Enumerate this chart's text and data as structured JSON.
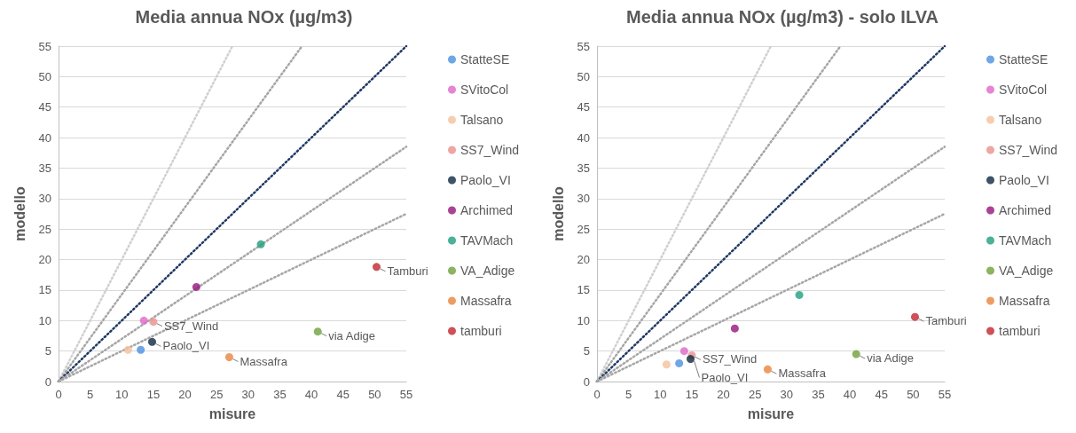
{
  "chart_data": [
    {
      "type": "scatter",
      "title": "Media annua NOx (µg/m3)",
      "xlabel": "misure",
      "ylabel": "modello",
      "xlim": [
        0,
        55
      ],
      "xticks": [
        0,
        5,
        10,
        15,
        20,
        25,
        30,
        35,
        40,
        45,
        50,
        55
      ],
      "ylim": [
        0,
        55
      ],
      "yticks": [
        0,
        5,
        10,
        15,
        20,
        25,
        30,
        35,
        40,
        45,
        50,
        55
      ],
      "grid": "y",
      "legend": "right",
      "marker": "circle",
      "series": [
        {
          "type": "line",
          "color": "#d0d0d0",
          "line_style": "dotted",
          "marker": "none",
          "x": [
            0,
            27.5
          ],
          "values": [
            0,
            55
          ]
        },
        {
          "type": "line",
          "color": "#a6a6a6",
          "line_style": "dotted",
          "marker": "none",
          "x": [
            0,
            38.5
          ],
          "values": [
            0,
            55
          ]
        },
        {
          "type": "line",
          "color": "#1f3864",
          "line_style": "dotted",
          "marker": "none",
          "x": [
            0,
            55
          ],
          "values": [
            0,
            55
          ]
        },
        {
          "type": "line",
          "color": "#a6a6a6",
          "line_style": "dotted",
          "marker": "none",
          "x": [
            0,
            55
          ],
          "values": [
            0,
            38.5
          ]
        },
        {
          "type": "line",
          "color": "#a6a6a6",
          "line_style": "dotted",
          "marker": "none",
          "x": [
            0,
            55
          ],
          "values": [
            0,
            27.5
          ]
        },
        {
          "name": "StatteSE",
          "color": "#4a90e2",
          "x": [
            13
          ],
          "values": [
            5.2
          ]
        },
        {
          "name": "SVitoCol",
          "color": "#e066c8",
          "x": [
            13.5
          ],
          "values": [
            10
          ]
        },
        {
          "name": "Talsano",
          "color": "#f4c09c",
          "x": [
            11
          ],
          "values": [
            5.2
          ]
        },
        {
          "name": "SS7_Wind",
          "color": "#e8908c",
          "x": [
            15
          ],
          "values": [
            9.8
          ]
        },
        {
          "name": "Paolo_VI",
          "color": "#0e2841",
          "x": [
            14.8
          ],
          "values": [
            6.5
          ]
        },
        {
          "name": "Archimed",
          "color": "#95147a",
          "x": [
            21.8
          ],
          "values": [
            15.5
          ]
        },
        {
          "name": "TAVMach",
          "color": "#1e9e7e",
          "x": [
            32
          ],
          "values": [
            22.5
          ]
        },
        {
          "name": "VA_Adige",
          "color": "#6ea03a",
          "x": [
            41
          ],
          "values": [
            8.2
          ]
        },
        {
          "name": "Massafra",
          "color": "#e8843c",
          "x": [
            27
          ],
          "values": [
            4
          ]
        },
        {
          "name": "tamburi",
          "color": "#c0262d",
          "x": [
            50.3
          ],
          "values": [
            18.8
          ]
        }
      ],
      "annotations": [
        {
          "text": "SS7_Wind",
          "x": 15,
          "y": 9.8
        },
        {
          "text": "Paolo_VI",
          "x": 14.8,
          "y": 6.5
        },
        {
          "text": "Massafra",
          "x": 27,
          "y": 4
        },
        {
          "text": "via Adige",
          "x": 41,
          "y": 8.2
        },
        {
          "text": "Tamburi",
          "x": 50.3,
          "y": 18.8
        }
      ]
    },
    {
      "type": "scatter",
      "title": "Media annua NOx (µg/m3) - solo ILVA",
      "xlabel": "misure",
      "ylabel": "modello",
      "xlim": [
        0,
        55
      ],
      "xticks": [
        0,
        5,
        10,
        15,
        20,
        25,
        30,
        35,
        40,
        45,
        50,
        55
      ],
      "ylim": [
        0,
        55
      ],
      "yticks": [
        0,
        5,
        10,
        15,
        20,
        25,
        30,
        35,
        40,
        45,
        50,
        55
      ],
      "grid": "y",
      "legend": "right",
      "marker": "circle",
      "series": [
        {
          "type": "line",
          "color": "#d0d0d0",
          "line_style": "dotted",
          "marker": "none",
          "x": [
            0,
            27.5
          ],
          "values": [
            0,
            55
          ]
        },
        {
          "type": "line",
          "color": "#a6a6a6",
          "line_style": "dotted",
          "marker": "none",
          "x": [
            0,
            38.5
          ],
          "values": [
            0,
            55
          ]
        },
        {
          "type": "line",
          "color": "#1f3864",
          "line_style": "dotted",
          "marker": "none",
          "x": [
            0,
            55
          ],
          "values": [
            0,
            55
          ]
        },
        {
          "type": "line",
          "color": "#a6a6a6",
          "line_style": "dotted",
          "marker": "none",
          "x": [
            0,
            55
          ],
          "values": [
            0,
            38.5
          ]
        },
        {
          "type": "line",
          "color": "#a6a6a6",
          "line_style": "dotted",
          "marker": "none",
          "x": [
            0,
            55
          ],
          "values": [
            0,
            27.5
          ]
        },
        {
          "name": "StatteSE",
          "color": "#4a90e2",
          "x": [
            13
          ],
          "values": [
            3
          ]
        },
        {
          "name": "SVitoCol",
          "color": "#e066c8",
          "x": [
            13.8
          ],
          "values": [
            5
          ]
        },
        {
          "name": "Talsano",
          "color": "#f4c09c",
          "x": [
            11
          ],
          "values": [
            2.8
          ]
        },
        {
          "name": "SS7_Wind",
          "color": "#e8908c",
          "x": [
            15
          ],
          "values": [
            4.3
          ]
        },
        {
          "name": "Paolo_VI",
          "color": "#0e2841",
          "x": [
            14.8
          ],
          "values": [
            3.7
          ]
        },
        {
          "name": "Archimed",
          "color": "#95147a",
          "x": [
            21.8
          ],
          "values": [
            8.7
          ]
        },
        {
          "name": "TAVMach",
          "color": "#1e9e7e",
          "x": [
            32
          ],
          "values": [
            14.2
          ]
        },
        {
          "name": "VA_Adige",
          "color": "#6ea03a",
          "x": [
            41
          ],
          "values": [
            4.5
          ]
        },
        {
          "name": "Massafra",
          "color": "#e8843c",
          "x": [
            27
          ],
          "values": [
            2
          ]
        },
        {
          "name": "tamburi",
          "color": "#c0262d",
          "x": [
            50.3
          ],
          "values": [
            10.6
          ]
        }
      ],
      "annotations": [
        {
          "text": "SS7_Wind",
          "x": 15,
          "y": 4.3
        },
        {
          "text": "Paolo_VI",
          "x": 14.8,
          "y": 3.7
        },
        {
          "text": "Massafra",
          "x": 27,
          "y": 2
        },
        {
          "text": "via Adige",
          "x": 41,
          "y": 4.5
        },
        {
          "text": "Tamburi",
          "x": 50.3,
          "y": 10.6
        }
      ]
    }
  ]
}
